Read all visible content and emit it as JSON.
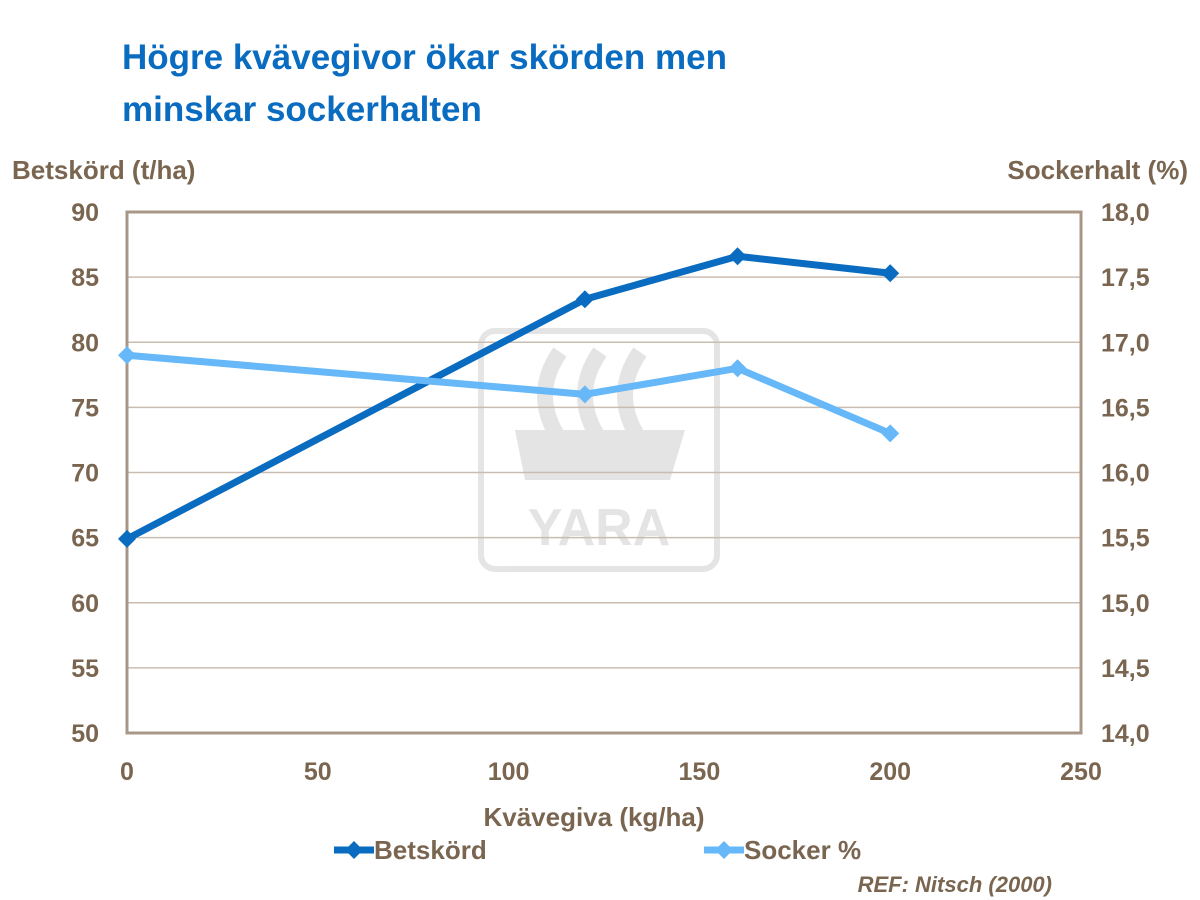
{
  "chart_data": {
    "type": "line",
    "title": "Högre kvävegivor ökar skörden men minskar sockerhalten",
    "title_lines": [
      "Högre kvävegivor ökar skörden men",
      "minskar sockerhalten"
    ],
    "xlabel": "Kvävegiva (kg/ha)",
    "ylabel_left": "Betskörd (t/ha)",
    "ylabel_right": "Sockerhalt (%)",
    "xlim": [
      0,
      250
    ],
    "x_ticks": [
      "0",
      "50",
      "100",
      "150",
      "200",
      "250"
    ],
    "ylim_left": [
      50,
      90
    ],
    "y_ticks_left": [
      "50",
      "55",
      "60",
      "65",
      "70",
      "75",
      "80",
      "85",
      "90"
    ],
    "ylim_right": [
      14.0,
      18.0
    ],
    "y_ticks_right": [
      "14,0",
      "14,5",
      "15,0",
      "15,5",
      "16,0",
      "16,5",
      "17,0",
      "17,5",
      "18,0"
    ],
    "grid": "horizontal",
    "legend_position": "bottom",
    "series": [
      {
        "name": "Betskörd",
        "axis": "left",
        "color": "#0A6CC0",
        "x": [
          0,
          120,
          160,
          200
        ],
        "y": [
          64.9,
          83.3,
          86.6,
          85.3
        ]
      },
      {
        "name": "Socker %",
        "axis": "right",
        "color": "#66B8F8",
        "x": [
          0,
          120,
          160,
          200
        ],
        "y": [
          16.9,
          16.6,
          16.8,
          16.3
        ]
      }
    ],
    "annotation": "REF: Nitsch (2000)",
    "watermark": "YARA"
  }
}
